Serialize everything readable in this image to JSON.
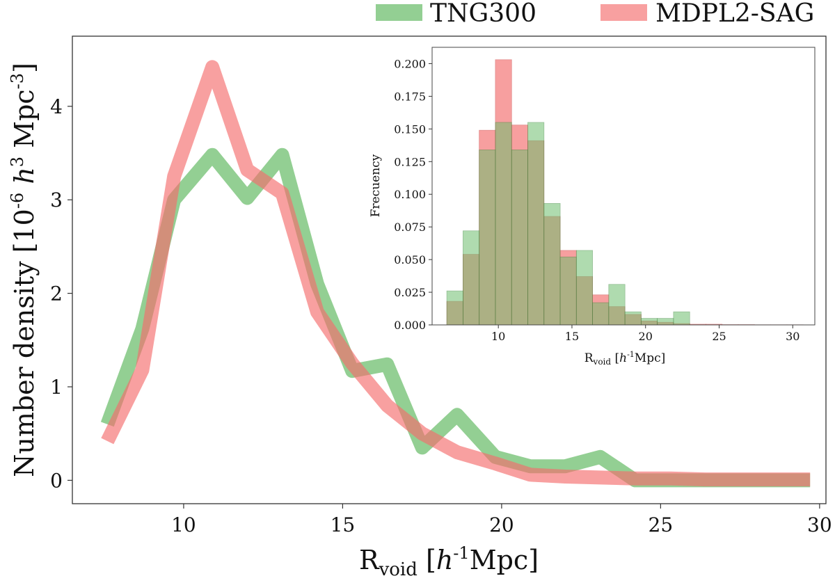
{
  "legend": {
    "position": "top-right",
    "entries": [
      {
        "label": "TNG300",
        "color": "#6fbf6f"
      },
      {
        "label": "MDPL2-SAG",
        "color": "#f46d6d"
      }
    ]
  },
  "colors": {
    "green": "#6fbf6f",
    "red": "#f46d6d",
    "overlap": "#8a8a57"
  },
  "chart_data": [
    {
      "id": "main",
      "type": "line",
      "title": "",
      "xlabel": {
        "main": "R",
        "sub": "void",
        "unit_open": " [",
        "h": "h",
        "sup": "-1",
        "unit_close": "Mpc]"
      },
      "ylabel": {
        "text": "Number density [10",
        "sup1": "-6",
        "h": " h",
        "sup2": "3",
        "mid": " Mpc",
        "sup3": "-3",
        "end": "]"
      },
      "xlim": [
        6.5,
        30.2
      ],
      "ylim": [
        -0.25,
        4.75
      ],
      "xticks": [
        10,
        15,
        20,
        25,
        30
      ],
      "yticks": [
        0,
        1,
        2,
        3,
        4
      ],
      "series": [
        {
          "name": "TNG300",
          "x": [
            7.6,
            8.7,
            9.7,
            10.9,
            12.0,
            13.1,
            14.2,
            15.3,
            16.4,
            17.5,
            18.6,
            19.8,
            20.9,
            22.0,
            23.1,
            24.2,
            25.3,
            26.4,
            27.5,
            28.6,
            29.7
          ],
          "y": [
            0.6,
            1.62,
            3.0,
            3.48,
            3.02,
            3.48,
            2.1,
            1.17,
            1.24,
            0.35,
            0.7,
            0.25,
            0.15,
            0.15,
            0.25,
            0.0,
            0.0,
            0.0,
            0.0,
            0.0,
            0.0
          ]
        },
        {
          "name": "MDPL2-SAG",
          "x": [
            7.6,
            8.7,
            9.7,
            10.9,
            12.0,
            13.1,
            14.2,
            15.3,
            16.4,
            17.5,
            18.6,
            19.8,
            20.9,
            22.0,
            23.1,
            24.2,
            25.3,
            26.4,
            27.5,
            28.6,
            29.7
          ],
          "y": [
            0.42,
            1.18,
            3.25,
            4.42,
            3.32,
            3.07,
            1.8,
            1.25,
            0.8,
            0.5,
            0.3,
            0.18,
            0.06,
            0.04,
            0.03,
            0.02,
            0.02,
            0.01,
            0.01,
            0.01,
            0.01
          ]
        }
      ]
    },
    {
      "id": "inset",
      "type": "histogram",
      "title": "",
      "xlabel": {
        "main": "R",
        "sub": "void",
        "unit_open": " [",
        "h": "h",
        "sup": "-1",
        "unit_close": "Mpc]"
      },
      "ylabel": "Frecuency",
      "xlim": [
        5.5,
        31.5
      ],
      "ylim": [
        0,
        0.2125
      ],
      "xticks": [
        10,
        15,
        20,
        25,
        30
      ],
      "yticks": [
        "0.000",
        "0.025",
        "0.050",
        "0.075",
        "0.100",
        "0.125",
        "0.150",
        "0.175",
        "0.200"
      ],
      "bin_edges": [
        6.5,
        7.6,
        8.7,
        9.8,
        10.9,
        12.0,
        13.1,
        14.2,
        15.3,
        16.4,
        17.5,
        18.6,
        19.7,
        20.8,
        21.9,
        23.0,
        24.1,
        25.2,
        26.3,
        27.4,
        28.5,
        29.6,
        30.7
      ],
      "series": [
        {
          "name": "TNG300",
          "values": [
            0.026,
            0.072,
            0.134,
            0.155,
            0.134,
            0.155,
            0.093,
            0.052,
            0.057,
            0.017,
            0.031,
            0.01,
            0.005,
            0.005,
            0.01,
            0.0,
            0.0,
            0.0,
            0.0,
            0.0,
            0.0,
            0.0
          ]
        },
        {
          "name": "MDPL2-SAG",
          "values": [
            0.018,
            0.054,
            0.149,
            0.203,
            0.153,
            0.141,
            0.083,
            0.057,
            0.037,
            0.023,
            0.014,
            0.008,
            0.003,
            0.002,
            0.001,
            0.0005,
            0.0005,
            0.0002,
            0.0002,
            0.0001,
            0.0001,
            0.0001
          ]
        }
      ]
    }
  ]
}
